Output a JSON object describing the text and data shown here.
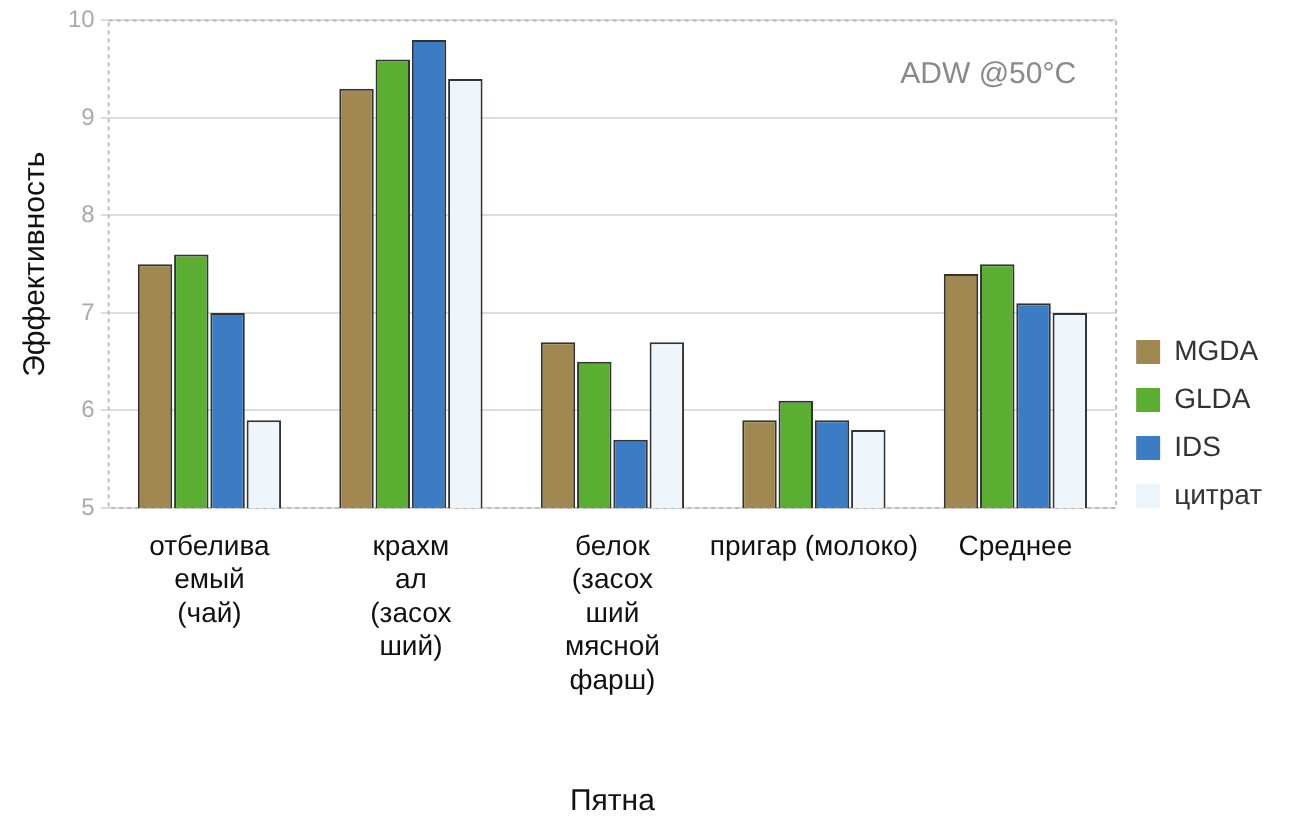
{
  "chart_data": {
    "type": "bar",
    "title": "ADW @50°C",
    "xlabel": "Пятна",
    "ylabel": "Эффективность",
    "categories": [
      "отбелива\nемый\n(чай)",
      "крахм\nал\n(засох\nший)",
      "белок\n(засох\nший\nмясной\nфарш)",
      "пригар (молоко)",
      "Среднее"
    ],
    "series": [
      {
        "name": "MGDA",
        "color": "#a08850",
        "values": [
          7.5,
          9.3,
          6.7,
          5.9,
          7.4
        ]
      },
      {
        "name": "GLDA",
        "color": "#5aae32",
        "values": [
          7.6,
          9.6,
          6.5,
          6.1,
          7.5
        ]
      },
      {
        "name": "IDS",
        "color": "#3b7cc4",
        "values": [
          7.0,
          9.8,
          5.7,
          5.9,
          7.1
        ]
      },
      {
        "name": "цитрат",
        "color": "#eef6fc",
        "values": [
          5.9,
          9.4,
          6.7,
          5.8,
          7.0
        ]
      }
    ],
    "ylim": [
      5,
      10
    ],
    "yticks": [
      5,
      6,
      7,
      8,
      9,
      10
    ],
    "grid": "y",
    "legend": "right"
  }
}
